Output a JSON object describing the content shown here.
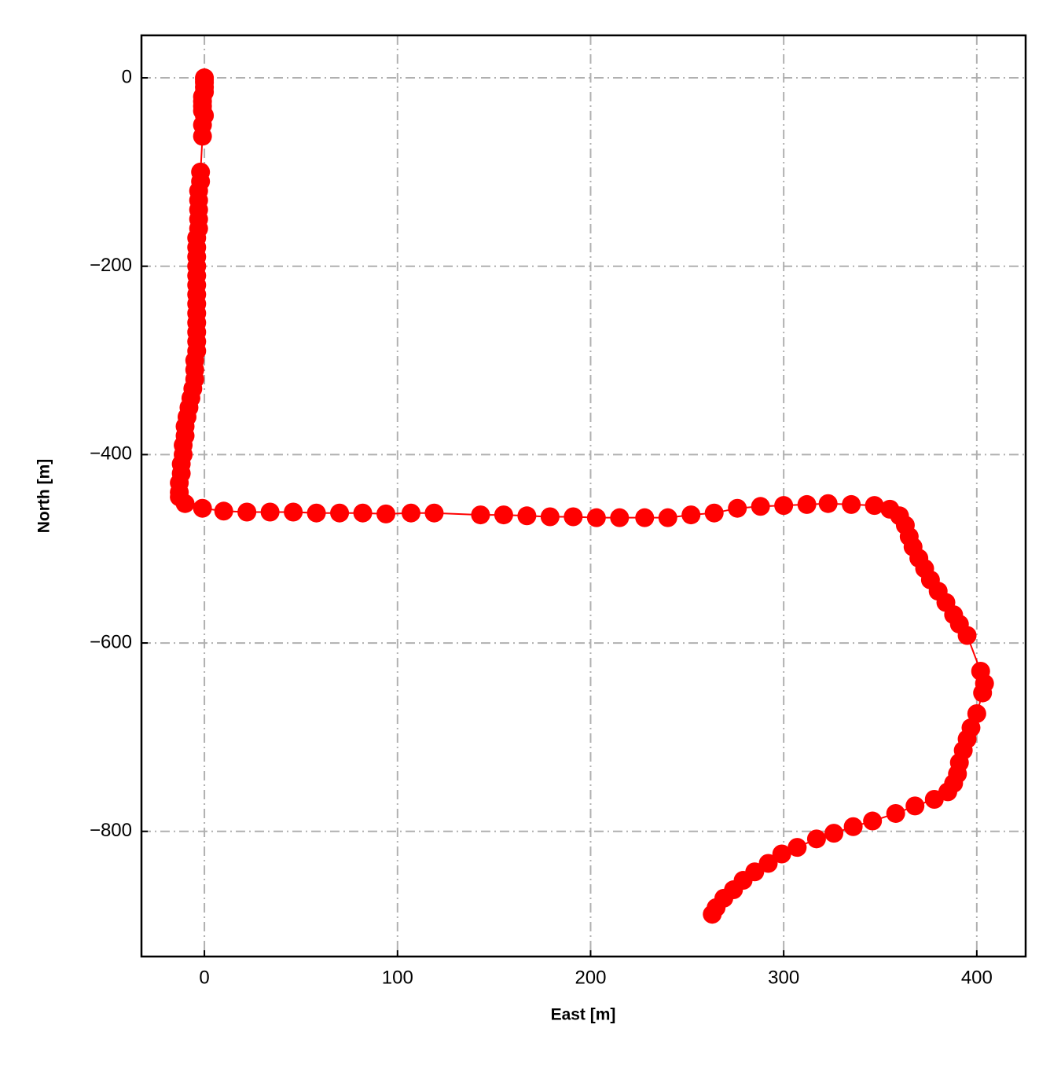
{
  "chart_data": {
    "type": "line",
    "xlabel": "East [m]",
    "ylabel": "North [m]",
    "color": "#ff0000",
    "marker": true,
    "grid": true,
    "xlim": [
      -32.6,
      425.3
    ],
    "ylim": [
      -932.9,
      45.1
    ],
    "xticks": [
      0,
      100,
      200,
      300,
      400
    ],
    "yticks": [
      {
        "value": -800,
        "label": "−800"
      },
      {
        "value": -600,
        "label": "−600"
      },
      {
        "value": -400,
        "label": "−400"
      },
      {
        "value": -200,
        "label": "−200"
      },
      0
    ],
    "x": [
      0,
      0,
      0,
      0,
      0,
      -1,
      -1,
      -1,
      -1,
      0,
      -1,
      -1,
      -2,
      -2,
      -3,
      -3,
      -3,
      -3,
      -3,
      -4,
      -4,
      -4,
      -4,
      -4,
      -4,
      -4,
      -4,
      -4,
      -4,
      -4,
      -4,
      -4,
      -5,
      -5,
      -5,
      -6,
      -7,
      -8,
      -9,
      -10,
      -10,
      -11,
      -11,
      -12,
      -12,
      -13,
      -13,
      -13,
      -10,
      -1,
      10,
      22,
      34,
      46,
      58,
      70,
      82,
      94,
      107,
      119,
      143,
      155,
      167,
      179,
      191,
      203,
      215,
      228,
      240,
      252,
      264,
      276,
      288,
      300,
      312,
      323,
      335,
      347,
      355,
      360,
      363,
      365,
      367,
      370,
      373,
      376,
      380,
      384,
      388,
      391,
      395,
      402,
      404,
      403,
      400,
      397,
      395,
      393,
      391,
      390,
      388,
      385,
      378,
      368,
      358,
      346,
      336,
      326,
      317,
      307,
      299,
      292,
      285,
      279,
      274,
      269,
      265,
      263
    ],
    "values": [
      0,
      -2,
      -5,
      -10,
      -15,
      -20,
      -25,
      -30,
      -35,
      -40,
      -50,
      -62,
      -100,
      -110,
      -120,
      -130,
      -140,
      -150,
      -160,
      -170,
      -180,
      -190,
      -200,
      -210,
      -220,
      -230,
      -240,
      -250,
      -260,
      -270,
      -280,
      -290,
      -300,
      -310,
      -320,
      -330,
      -340,
      -350,
      -360,
      -370,
      -380,
      -390,
      -400,
      -410,
      -420,
      -430,
      -440,
      -445,
      -452,
      -457,
      -460,
      -461,
      -461,
      -461,
      -462,
      -462,
      -462,
      -463,
      -462,
      -462,
      -464,
      -464,
      -465,
      -466,
      -466,
      -467,
      -467,
      -467,
      -467,
      -464,
      -462,
      -457,
      -455,
      -454,
      -453,
      -452,
      -453,
      -454,
      -458,
      -465,
      -475,
      -487,
      -498,
      -510,
      -521,
      -533,
      -545,
      -557,
      -570,
      -580,
      -592,
      -630,
      -643,
      -653,
      -675,
      -690,
      -702,
      -714,
      -727,
      -739,
      -749,
      -758,
      -766,
      -773,
      -781,
      -789,
      -795,
      -802,
      -808,
      -817,
      -824,
      -834,
      -843,
      -852,
      -862,
      -871,
      -881,
      -888
    ]
  }
}
